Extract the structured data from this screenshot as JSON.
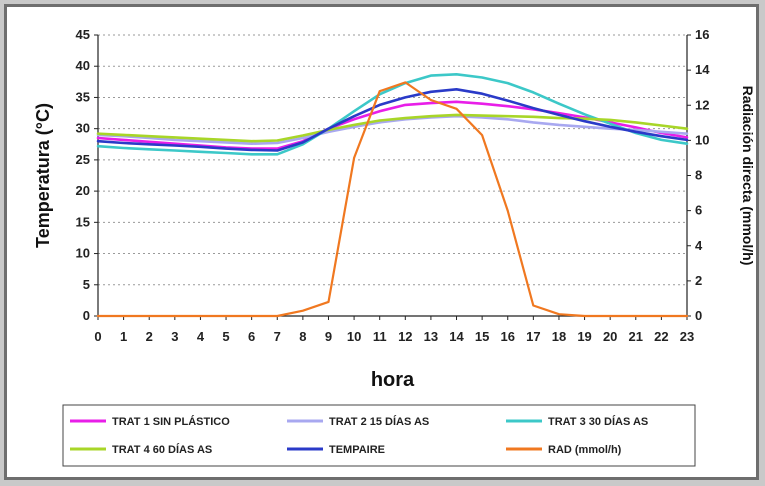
{
  "chart_data": {
    "type": "line",
    "title": "",
    "xlabel": "hora",
    "ylabel": "Temperatura (°C)",
    "y2label": "Radiación directa (mmol/h)",
    "x": [
      0,
      1,
      2,
      3,
      4,
      5,
      6,
      7,
      8,
      9,
      10,
      11,
      12,
      13,
      14,
      15,
      16,
      17,
      18,
      19,
      20,
      21,
      22,
      23
    ],
    "ylim": [
      0,
      45
    ],
    "y2lim": [
      0,
      16
    ],
    "yticks": [
      0,
      5,
      10,
      15,
      20,
      25,
      30,
      35,
      40,
      45
    ],
    "y2ticks": [
      0,
      2,
      4,
      6,
      8,
      10,
      12,
      14,
      16
    ],
    "grid": true,
    "legend_position": "bottom",
    "series": [
      {
        "name": "TRAT 1 SIN PLÁSTICO",
        "color": "#e81ee8",
        "axis": "left",
        "values": [
          28.5,
          28.2,
          27.9,
          27.6,
          27.3,
          27.0,
          26.8,
          26.8,
          28.0,
          30.0,
          31.5,
          32.8,
          33.8,
          34.1,
          34.3,
          34.0,
          33.6,
          33.1,
          32.5,
          31.8,
          31.0,
          30.2,
          29.3,
          28.6
        ]
      },
      {
        "name": "TRAT 2 15 DÍAS AS",
        "color": "#a8a8f0",
        "axis": "left",
        "values": [
          29.0,
          28.8,
          28.5,
          28.2,
          28.0,
          27.8,
          27.6,
          27.7,
          28.5,
          29.5,
          30.3,
          31.0,
          31.5,
          31.8,
          32.0,
          31.8,
          31.5,
          31.0,
          30.6,
          30.3,
          30.0,
          29.8,
          29.5,
          29.2
        ]
      },
      {
        "name": "TRAT 3 30 DÍAS AS",
        "color": "#3cc8c8",
        "axis": "left",
        "values": [
          27.2,
          26.9,
          26.7,
          26.5,
          26.3,
          26.1,
          25.9,
          25.9,
          27.5,
          30.0,
          32.8,
          35.5,
          37.3,
          38.5,
          38.7,
          38.2,
          37.3,
          35.8,
          34.0,
          32.3,
          30.8,
          29.3,
          28.2,
          27.6
        ]
      },
      {
        "name": "TRAT 4 60 DÍAS AS",
        "color": "#a8d628",
        "axis": "left",
        "values": [
          29.2,
          29.0,
          28.8,
          28.6,
          28.4,
          28.2,
          28.0,
          28.1,
          28.9,
          29.8,
          30.6,
          31.3,
          31.7,
          32.0,
          32.2,
          32.1,
          32.0,
          31.9,
          31.7,
          31.6,
          31.4,
          31.0,
          30.5,
          30.0
        ]
      },
      {
        "name": "TEMPAIRE",
        "color": "#2a3ac8",
        "axis": "left",
        "values": [
          28.0,
          27.7,
          27.5,
          27.3,
          27.1,
          26.8,
          26.6,
          26.5,
          27.8,
          30.0,
          32.0,
          33.8,
          35.0,
          35.9,
          36.3,
          35.6,
          34.5,
          33.3,
          32.2,
          31.2,
          30.3,
          29.5,
          28.8,
          28.2
        ]
      },
      {
        "name": "RAD (mmol/h)",
        "color": "#f07820",
        "axis": "right",
        "values": [
          0,
          0,
          0,
          0,
          0,
          0,
          0,
          0,
          0.3,
          0.8,
          9.0,
          12.8,
          13.3,
          12.3,
          11.8,
          10.3,
          6.0,
          0.6,
          0.1,
          0,
          0,
          0,
          0,
          0
        ]
      }
    ]
  }
}
